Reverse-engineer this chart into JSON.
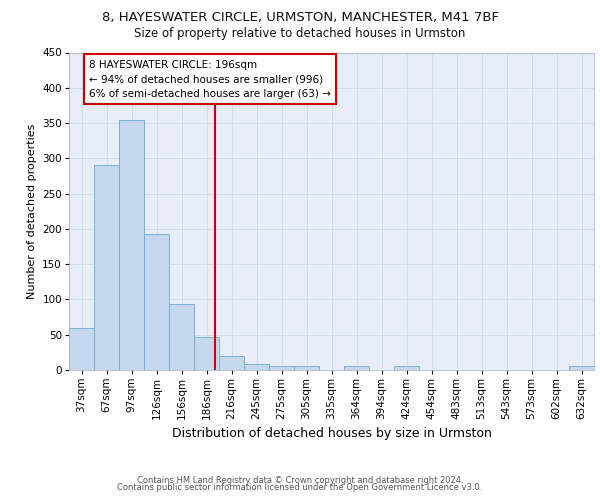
{
  "title1": "8, HAYESWATER CIRCLE, URMSTON, MANCHESTER, M41 7BF",
  "title2": "Size of property relative to detached houses in Urmston",
  "xlabel": "Distribution of detached houses by size in Urmston",
  "ylabel": "Number of detached properties",
  "categories": [
    "37sqm",
    "67sqm",
    "97sqm",
    "126sqm",
    "156sqm",
    "186sqm",
    "216sqm",
    "245sqm",
    "275sqm",
    "305sqm",
    "335sqm",
    "364sqm",
    "394sqm",
    "424sqm",
    "454sqm",
    "483sqm",
    "513sqm",
    "543sqm",
    "573sqm",
    "602sqm",
    "632sqm"
  ],
  "values": [
    60,
    290,
    355,
    193,
    93,
    47,
    20,
    9,
    5,
    6,
    0,
    5,
    0,
    5,
    0,
    0,
    0,
    0,
    0,
    0,
    5
  ],
  "bar_color": "#c5d8ee",
  "bar_edge_color": "#6aaad4",
  "grid_color": "#d0dae8",
  "background_color": "#e8eef8",
  "vline_color": "#cc0000",
  "vline_x": 5.35,
  "annotation_text": "8 HAYESWATER CIRCLE: 196sqm\n← 94% of detached houses are smaller (996)\n6% of semi-detached houses are larger (63) →",
  "annotation_box_color": "#ffffff",
  "annotation_box_edge": "#cc0000",
  "ylim_max": 450,
  "yticks": [
    0,
    50,
    100,
    150,
    200,
    250,
    300,
    350,
    400,
    450
  ],
  "footer1": "Contains HM Land Registry data © Crown copyright and database right 2024.",
  "footer2": "Contains public sector information licensed under the Open Government Licence v3.0.",
  "title1_fontsize": 9.5,
  "title2_fontsize": 8.5,
  "xlabel_fontsize": 9,
  "ylabel_fontsize": 8,
  "tick_fontsize": 7.5,
  "annotation_fontsize": 7.5,
  "footer_fontsize": 6.0
}
